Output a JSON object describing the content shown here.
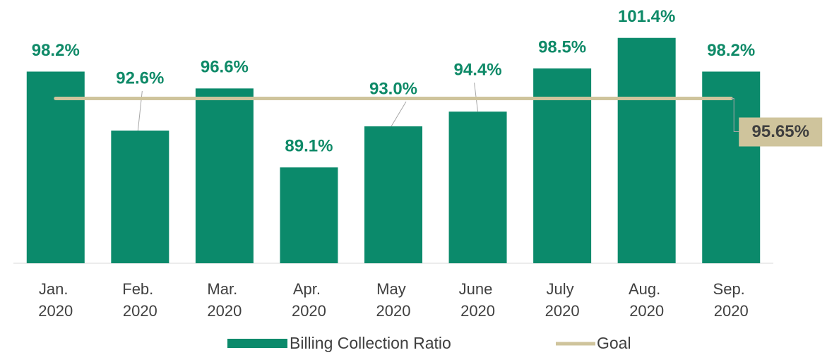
{
  "chart_data": {
    "type": "bar",
    "categories": [
      "Jan. 2020",
      "Feb. 2020",
      "Mar. 2020",
      "Apr. 2020",
      "May 2020",
      "June 2020",
      "July 2020",
      "Aug. 2020",
      "Sep. 2020"
    ],
    "series": [
      {
        "name": "Billing Collection Ratio",
        "type": "bar",
        "color": "#0b8a6b",
        "values": [
          98.2,
          92.6,
          96.6,
          89.1,
          93.0,
          94.4,
          98.5,
          101.4,
          98.2
        ],
        "value_labels": [
          "98.2%",
          "92.6%",
          "96.6%",
          "89.1%",
          "93.0%",
          "94.4%",
          "98.5%",
          "101.4%",
          "98.2%"
        ]
      },
      {
        "name": "Goal",
        "type": "line",
        "color": "#cfc49c",
        "value": 95.65,
        "value_label": "95.65%"
      }
    ],
    "ylim": [
      80,
      105
    ],
    "legend": "bottom"
  }
}
